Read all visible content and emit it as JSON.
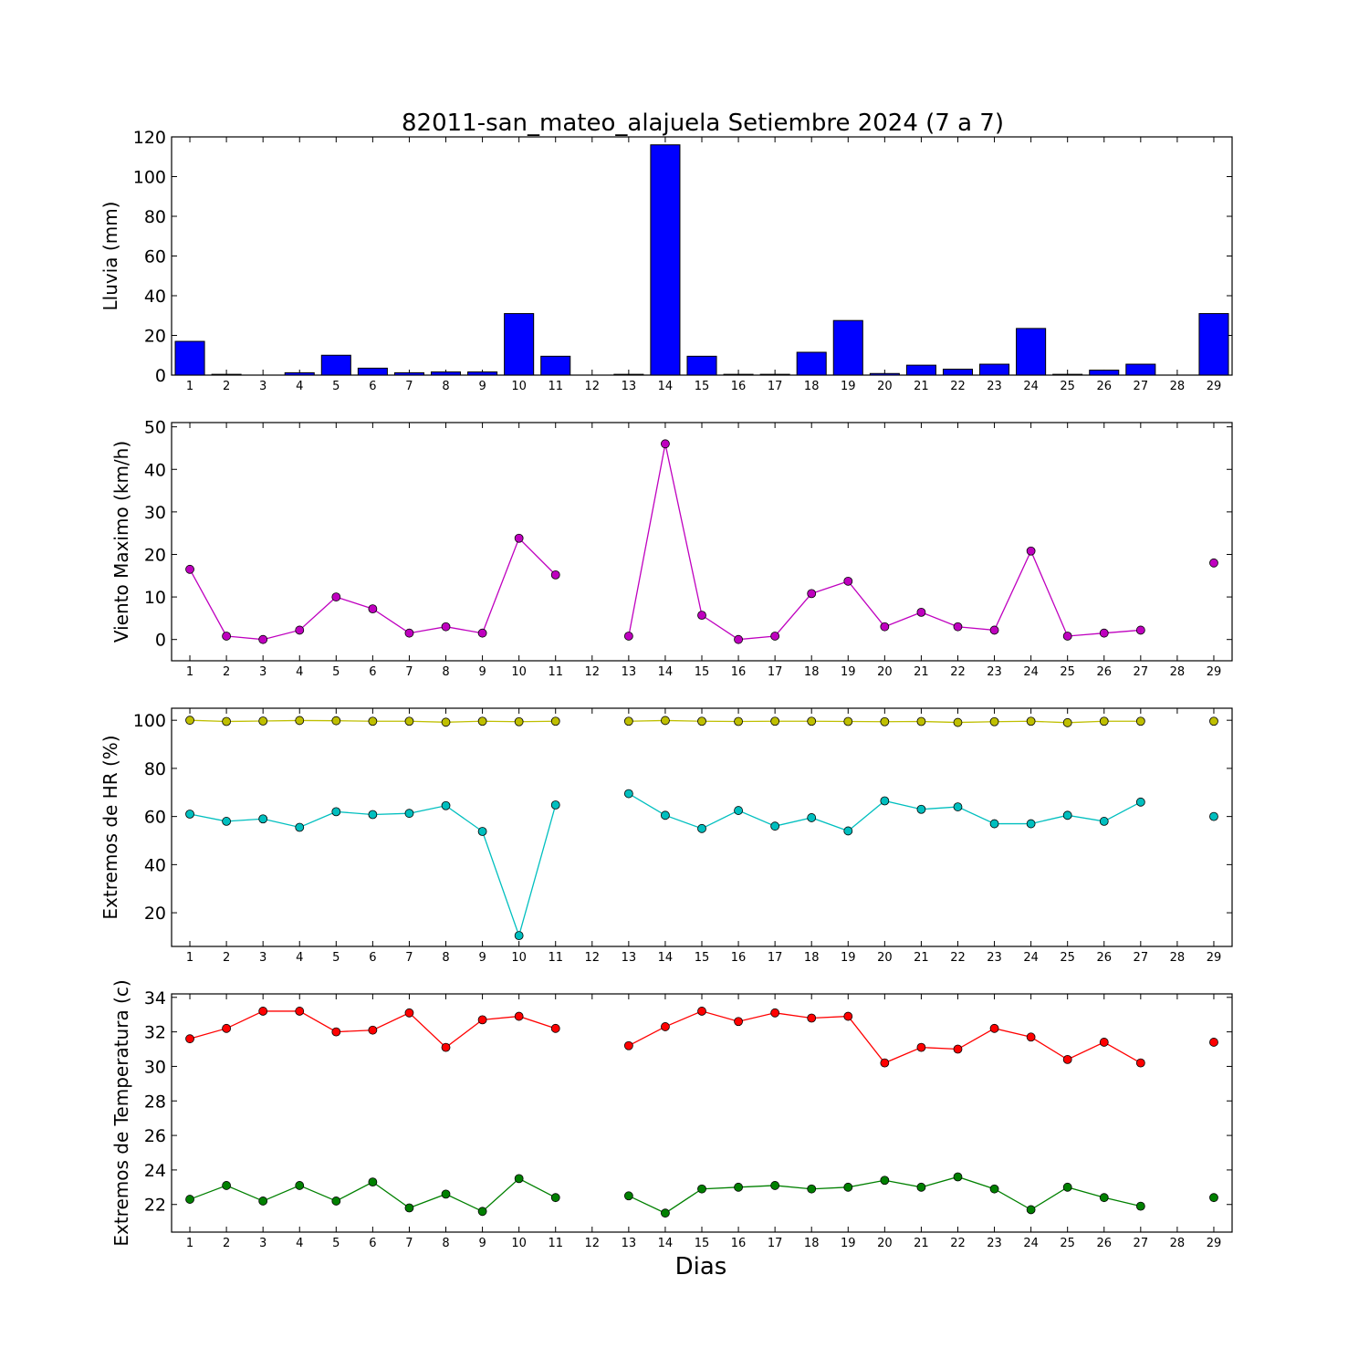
{
  "figure": {
    "title": "82011-san_mateo_alajuela Setiembre 2024  (7 a 7)",
    "xlabel": "Dias"
  },
  "colors": {
    "rain_bar": "#0000ff",
    "wind": "#bf00bf",
    "hr_max": "#bfbf00",
    "hr_min": "#00bfbf",
    "temp_max": "#ff0000",
    "temp_min": "#008000"
  },
  "chart_data": [
    {
      "type": "bar",
      "ylabel": "Lluvia (mm)",
      "ylim": [
        0,
        120
      ],
      "yticks": [
        0,
        20,
        40,
        60,
        80,
        100,
        120
      ],
      "categories": [
        1,
        2,
        3,
        4,
        5,
        6,
        7,
        8,
        9,
        10,
        11,
        12,
        13,
        14,
        15,
        16,
        17,
        18,
        19,
        20,
        21,
        22,
        23,
        24,
        25,
        26,
        27,
        28,
        29
      ],
      "series": [
        {
          "values": [
            17,
            0.4,
            0,
            1.2,
            10,
            3.5,
            1.2,
            1.6,
            1.6,
            31,
            9.5,
            0,
            0.4,
            116,
            9.5,
            0.4,
            0.4,
            11.5,
            27.5,
            0.8,
            5,
            3,
            5.5,
            23.5,
            0.4,
            2.5,
            5.5,
            0,
            31
          ]
        }
      ],
      "grid": false
    },
    {
      "type": "line",
      "ylabel": "Viento Maximo (km/h)",
      "ylim": [
        -5,
        51
      ],
      "yticks": [
        0,
        10,
        20,
        30,
        40,
        50
      ],
      "x": [
        1,
        2,
        3,
        4,
        5,
        6,
        7,
        8,
        9,
        10,
        11,
        12,
        13,
        14,
        15,
        16,
        17,
        18,
        19,
        20,
        21,
        22,
        23,
        24,
        25,
        26,
        27,
        28,
        29
      ],
      "series": [
        {
          "values": [
            16.5,
            0.8,
            0,
            2.2,
            10,
            7.2,
            1.5,
            3,
            1.5,
            23.8,
            15.2,
            null,
            0.8,
            46,
            5.7,
            0,
            0.8,
            10.8,
            13.7,
            3,
            6.4,
            3,
            2.2,
            20.8,
            0.8,
            1.5,
            2.2,
            null,
            18
          ]
        }
      ],
      "grid": false
    },
    {
      "type": "line",
      "ylabel": "Extremos de HR (%)",
      "ylim": [
        6,
        105
      ],
      "yticks": [
        20,
        40,
        60,
        80,
        100
      ],
      "x": [
        1,
        2,
        3,
        4,
        5,
        6,
        7,
        8,
        9,
        10,
        11,
        12,
        13,
        14,
        15,
        16,
        17,
        18,
        19,
        20,
        21,
        22,
        23,
        24,
        25,
        26,
        27,
        28,
        29
      ],
      "series": [
        {
          "values": [
            100,
            99.5,
            99.7,
            99.9,
            99.8,
            99.6,
            99.6,
            99.2,
            99.6,
            99.4,
            99.6,
            null,
            99.6,
            99.9,
            99.6,
            99.5,
            99.6,
            99.6,
            99.5,
            99.4,
            99.5,
            99.1,
            99.4,
            99.6,
            99,
            99.6,
            99.6,
            null,
            99.6
          ]
        },
        {
          "values": [
            61,
            58,
            59,
            55.5,
            62,
            60.8,
            61.3,
            64.5,
            53.8,
            10.5,
            64.8,
            null,
            69.5,
            60.5,
            55,
            62.5,
            56,
            59.5,
            54,
            66.5,
            63,
            64,
            57,
            57,
            60.5,
            58,
            66,
            null,
            60
          ]
        }
      ],
      "grid": false
    },
    {
      "type": "line",
      "ylabel": "Extremos de Temperatura (c)",
      "ylim": [
        20.4,
        34.2
      ],
      "yticks": [
        22,
        24,
        26,
        28,
        30,
        32,
        34
      ],
      "x": [
        1,
        2,
        3,
        4,
        5,
        6,
        7,
        8,
        9,
        10,
        11,
        12,
        13,
        14,
        15,
        16,
        17,
        18,
        19,
        20,
        21,
        22,
        23,
        24,
        25,
        26,
        27,
        28,
        29
      ],
      "series": [
        {
          "values": [
            31.6,
            32.2,
            33.2,
            33.2,
            32,
            32.1,
            33.1,
            31.1,
            32.7,
            32.9,
            32.2,
            null,
            31.2,
            32.3,
            33.2,
            32.6,
            33.1,
            32.8,
            32.9,
            30.2,
            31.1,
            31,
            32.2,
            31.7,
            30.4,
            31.4,
            30.2,
            null,
            31.4
          ]
        },
        {
          "values": [
            22.3,
            23.1,
            22.2,
            23.1,
            22.2,
            23.3,
            21.8,
            22.6,
            21.6,
            23.5,
            22.4,
            null,
            22.5,
            21.5,
            22.9,
            23,
            23.1,
            22.9,
            23,
            23.4,
            23,
            23.6,
            22.9,
            21.7,
            23,
            22.4,
            21.9,
            null,
            22.4
          ]
        }
      ],
      "grid": false
    }
  ]
}
